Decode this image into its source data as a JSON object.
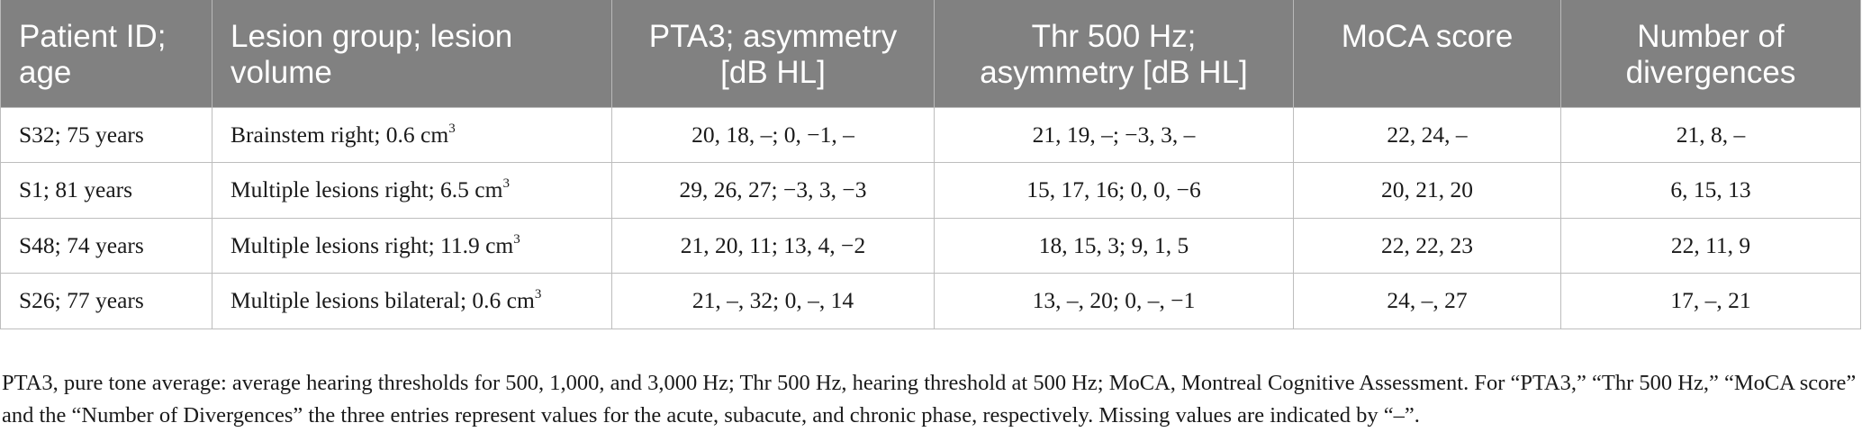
{
  "table": {
    "headers": [
      "Patient ID; age",
      "Lesion group; lesion volume",
      "PTA3; asymmetry [dB HL]",
      "Thr 500 Hz; asymmetry [dB HL]",
      "MoCA score",
      "Number of divergences"
    ],
    "rows": [
      {
        "patient": "S32; 75 years",
        "lesion": "Brainstem right; 0.6 cm",
        "lesion_unit_sup": "3",
        "pta3": "20, 18, –; 0, −1, –",
        "thr500": "21, 19, –; −3, 3, –",
        "moca": "22, 24, –",
        "divergences": "21, 8, –"
      },
      {
        "patient": "S1; 81 years",
        "lesion": "Multiple lesions right; 6.5 cm",
        "lesion_unit_sup": "3",
        "pta3": "29, 26, 27; −3, 3, −3",
        "thr500": "15, 17, 16; 0, 0, −6",
        "moca": "20, 21, 20",
        "divergences": "6, 15, 13"
      },
      {
        "patient": "S48; 74 years",
        "lesion": "Multiple lesions right; 11.9 cm",
        "lesion_unit_sup": "3",
        "pta3": "21, 20, 11; 13, 4, −2",
        "thr500": "18, 15, 3; 9, 1, 5",
        "moca": "22, 22, 23",
        "divergences": "22, 11, 9"
      },
      {
        "patient": "S26; 77 years",
        "lesion": "Multiple lesions bilateral; 0.6 cm",
        "lesion_unit_sup": "3",
        "pta3": "21, –, 32; 0, –, 14",
        "thr500": "13, –, 20; 0, –, −1",
        "moca": "24, –, 27",
        "divergences": "17, –, 21"
      }
    ]
  },
  "footnote": "PTA3, pure tone average: average hearing thresholds for 500, 1,000, and 3,000 Hz; Thr 500 Hz, hearing threshold at 500 Hz; MoCA, Montreal Cognitive Assessment. For “PTA3,” “Thr 500 Hz,” “MoCA score” and the “Number of Divergences” the three entries represent values for the acute, subacute, and chronic phase, respectively. Missing values are indicated by “–”.",
  "colors": {
    "header_background": "#818181",
    "header_text": "#ffffff",
    "border": "#bdbdbd"
  }
}
